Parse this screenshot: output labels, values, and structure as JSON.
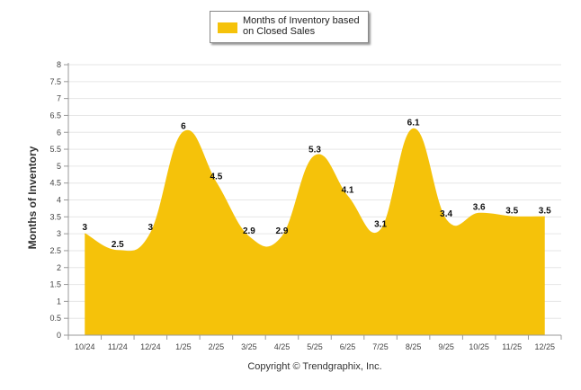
{
  "legend": {
    "label": "Months of Inventory based on Closed Sales"
  },
  "footer": {
    "copyright": "Copyright © Trendgraphix, Inc."
  },
  "colors": {
    "series": "#F5C20A",
    "grid": "#E6E6E6",
    "axis": "#999999"
  },
  "chart_data": {
    "type": "area",
    "title": "",
    "xlabel": "",
    "ylabel": "Months of Inventory",
    "categories": [
      "10/24",
      "11/24",
      "12/24",
      "1/25",
      "2/25",
      "3/25",
      "4/25",
      "5/25",
      "6/25",
      "7/25",
      "8/25",
      "9/25",
      "10/25",
      "11/25",
      "12/25"
    ],
    "series": [
      {
        "name": "Months of Inventory based on Closed Sales",
        "values": [
          3,
          2.5,
          3,
          6,
          4.5,
          2.9,
          2.9,
          5.3,
          4.1,
          3.1,
          6.1,
          3.4,
          3.6,
          3.5,
          3.5
        ]
      }
    ],
    "data_labels": [
      "3",
      "2.5",
      "3",
      "6",
      "4.5",
      "2.9",
      "2.9",
      "5.3",
      "4.1",
      "3.1",
      "6.1",
      "3.4",
      "3.6",
      "3.5",
      "3.5"
    ],
    "ylim": [
      0,
      8
    ],
    "yticks": [
      "0",
      "0.5",
      "1",
      "1.5",
      "2",
      "2.5",
      "3",
      "3.5",
      "4",
      "4.5",
      "5",
      "5.5",
      "6",
      "6.5",
      "7",
      "7.5",
      "8"
    ],
    "grid": true,
    "legend_position": "top-center"
  }
}
